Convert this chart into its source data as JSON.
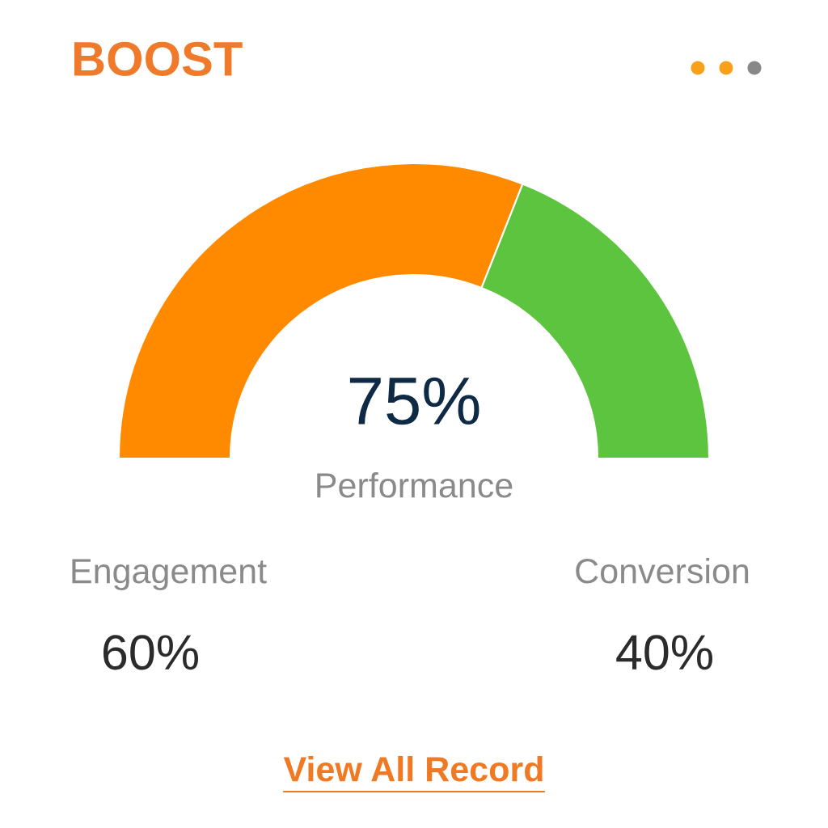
{
  "chart_data": {
    "type": "donut",
    "title": "BOOST",
    "categories": [
      null,
      null
    ],
    "values": [
      62,
      38
    ],
    "colors": [
      "#ff8a00",
      "#5cc43f"
    ],
    "annotations": [
      "75%",
      "Performance",
      "Engagement",
      "60%",
      "Conversion",
      "40%",
      "View All Record"
    ]
  }
}
